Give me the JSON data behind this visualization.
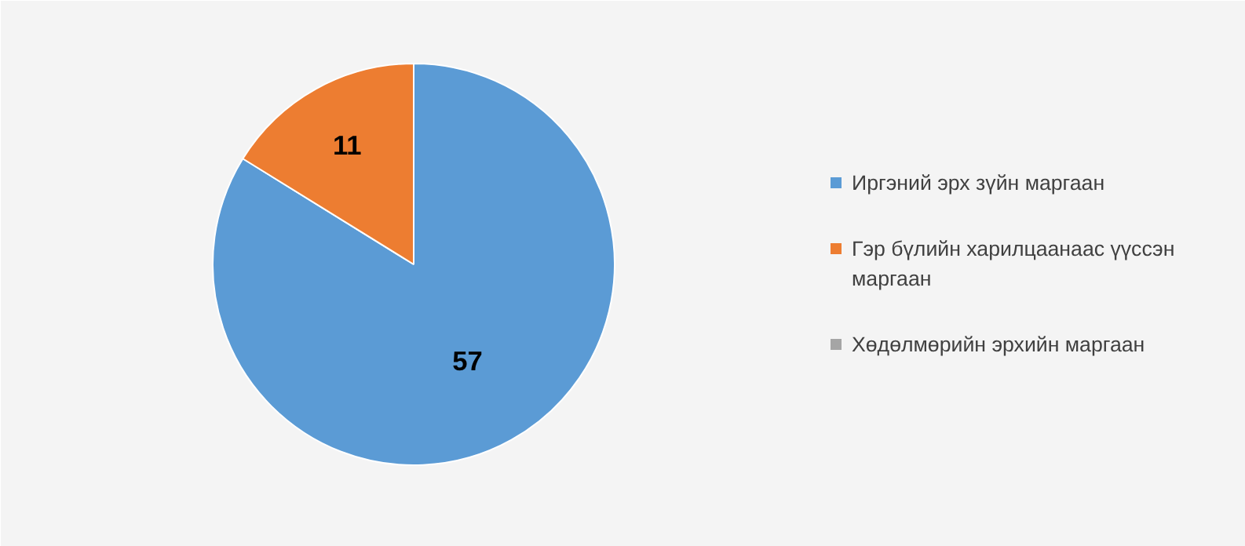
{
  "chart_data": {
    "type": "pie",
    "categories": [
      "Иргэний эрх зүйн маргаан",
      "Гэр бүлийн харилцаанаас үүссэн маргаан",
      "Хөдөлмөрийн эрхийн маргаан"
    ],
    "values": [
      57,
      11,
      0
    ],
    "colors": [
      "#5b9bd5",
      "#ed7d31",
      "#a5a5a5"
    ],
    "value_labels": [
      "57",
      "11",
      null
    ],
    "legend": "right"
  }
}
